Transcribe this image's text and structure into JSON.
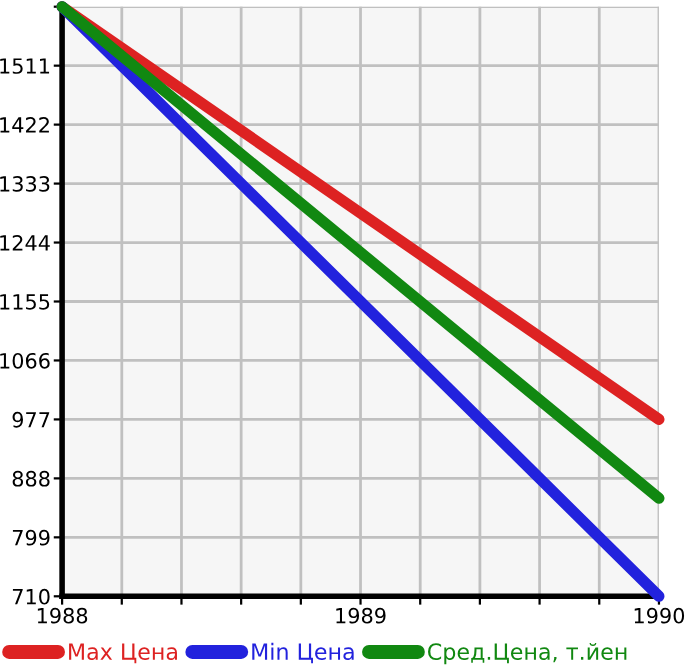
{
  "chart_data": {
    "type": "line",
    "x": [
      1988,
      1990
    ],
    "series": [
      {
        "name": "Max Цена",
        "color": "#dd2222",
        "values": [
          1600,
          977
        ]
      },
      {
        "name": "Min Цена",
        "color": "#2222dd",
        "values": [
          1600,
          710
        ]
      },
      {
        "name": "Сред.Цена, т.йен",
        "color": "#118811",
        "values": [
          1600,
          858
        ]
      }
    ],
    "xlim": [
      1988,
      1990
    ],
    "ylim": [
      710,
      1600
    ],
    "xticks": [
      1988,
      {
        "value": 1988.2,
        "label": null
      },
      {
        "value": 1988.4,
        "label": null
      },
      {
        "value": 1988.6,
        "label": null
      },
      {
        "value": 1988.8,
        "label": null
      },
      1989,
      {
        "value": 1989.2,
        "label": null
      },
      {
        "value": 1989.4,
        "label": null
      },
      {
        "value": 1989.6,
        "label": null
      },
      {
        "value": 1989.8,
        "label": null
      },
      1990
    ],
    "yticks": [
      710,
      799,
      888,
      977,
      1066,
      1155,
      1244,
      1333,
      1422,
      1511,
      {
        "value": 1600,
        "label": null
      }
    ],
    "grid": true,
    "legend": "bottom",
    "marker": "none",
    "line_style": "solid"
  }
}
